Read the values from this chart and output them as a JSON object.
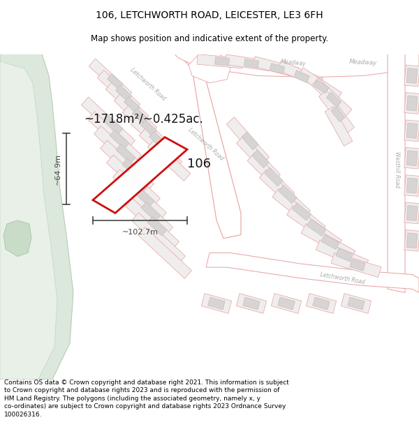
{
  "title": "106, LETCHWORTH ROAD, LEICESTER, LE3 6FH",
  "subtitle": "Map shows position and indicative extent of the property.",
  "footer": "Contains OS data © Crown copyright and database right 2021. This information is subject\nto Crown copyright and database rights 2023 and is reproduced with the permission of\nHM Land Registry. The polygons (including the associated geometry, namely x, y\nco-ordinates) are subject to Crown copyright and database rights 2023 Ordnance Survey\n100026316.",
  "area_label": "~1718m²/~0.425ac.",
  "width_label": "~102.7m",
  "height_label": "~64.9m",
  "plot_number": "106",
  "map_bg": "#ffffff",
  "plot_fill": "#f0eded",
  "plot_edge": "#e8a0a0",
  "road_fill": "#ffffff",
  "road_edge": "#e8a0a0",
  "building_fill": "#d8d4d4",
  "building_edge": "#c8c0c0",
  "green_fill1": "#dce8dc",
  "green_fill2": "#e8f0e8",
  "green_edge": "#b0c8b0",
  "highlight_edge": "#cc0000",
  "highlight_fill": "#ffffff",
  "dim_color": "#444444",
  "road_label_color": "#aaaaaa",
  "text_color": "#111111",
  "title_fontsize": 10,
  "subtitle_fontsize": 8.5,
  "footer_fontsize": 6.5,
  "area_fontsize": 12,
  "dim_fontsize": 8,
  "plot_num_fontsize": 13,
  "road_label_fontsize": 5.5
}
